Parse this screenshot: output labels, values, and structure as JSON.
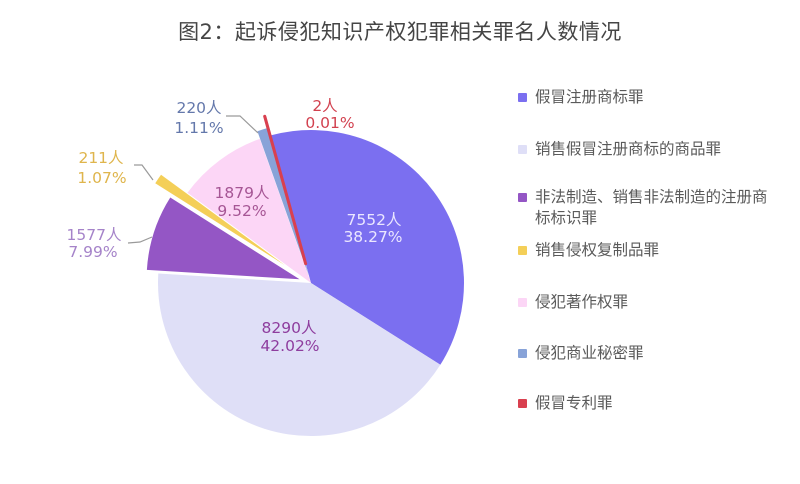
{
  "title": "图2：起诉侵犯知识产权犯罪相关罪名人数情况",
  "chart_data": {
    "type": "pie",
    "title": "图2：起诉侵犯知识产权犯罪相关罪名人数情况",
    "unit": "人",
    "legend_position": "right",
    "total": 19731,
    "series": [
      {
        "name": "假冒注册商标罪",
        "value": 7552,
        "count_label": "7552人",
        "percent": "38.27%",
        "color": "#7b6ff0",
        "label_color": "#ebe7ff"
      },
      {
        "name": "销售假冒注册商标的商品罪",
        "value": 8290,
        "count_label": "8290人",
        "percent": "42.02%",
        "color": "#dfdff7",
        "label_color": "#8e3d9e"
      },
      {
        "name": "非法制造、销售非法制造的注册商标标识罪",
        "value": 1577,
        "count_label": "1577人",
        "percent": "7.99%",
        "color": "#9456c5",
        "label_color": "#a583c9"
      },
      {
        "name": "销售侵权复制品罪",
        "value": 211,
        "count_label": "211人",
        "percent": "1.07%",
        "color": "#f4cf58",
        "label_color": "#dfb54c"
      },
      {
        "name": "侵犯著作权罪",
        "value": 1879,
        "count_label": "1879人",
        "percent": "9.52%",
        "color": "#fcd6f6",
        "label_color": "#a65695"
      },
      {
        "name": "侵犯商业秘密罪",
        "value": 220,
        "count_label": "220人",
        "percent": "1.11%",
        "color": "#88a3d8",
        "label_color": "#6478ab"
      },
      {
        "name": "假冒专利罪",
        "value": 2,
        "count_label": "2人",
        "percent": "0.01%",
        "color": "#d9404f",
        "label_color": "#d2414f"
      }
    ]
  }
}
